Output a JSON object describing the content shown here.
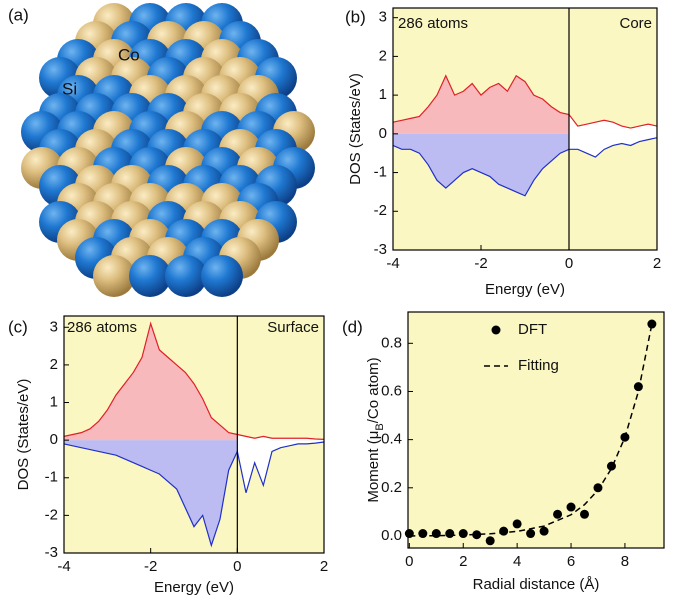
{
  "panel_a": {
    "label": "(a)",
    "atom_labels": [
      "Co",
      "Si"
    ]
  },
  "chart_data": [
    {
      "type": "area",
      "panel_label": "(b)",
      "annotations": [
        "286 atoms",
        "Core"
      ],
      "xlabel": "Energy (eV)",
      "ylabel": "DOS (States/eV)",
      "xlim": [
        -4,
        2
      ],
      "ylim": [
        -3,
        3.25
      ],
      "xticks": [
        -4,
        -2,
        0,
        2
      ],
      "yticks": [
        -3,
        -2,
        -1,
        0,
        1,
        2,
        3
      ],
      "vline": 0,
      "background": "#faf7c2",
      "empty_fill": "#ffffff",
      "x": [
        -4,
        -3.8,
        -3.6,
        -3.4,
        -3.2,
        -3,
        -2.8,
        -2.6,
        -2.4,
        -2.2,
        -2,
        -1.8,
        -1.6,
        -1.4,
        -1.2,
        -1,
        -0.8,
        -0.6,
        -0.4,
        -0.2,
        0,
        0.2,
        0.4,
        0.6,
        0.8,
        1,
        1.2,
        1.4,
        1.6,
        1.8,
        2
      ],
      "series": [
        {
          "color": "#e0202a",
          "fill": "#f7b9bb",
          "values": [
            0.3,
            0.35,
            0.4,
            0.45,
            0.7,
            1.0,
            1.5,
            1.0,
            1.1,
            1.3,
            1.0,
            1.2,
            1.3,
            1.1,
            1.5,
            1.35,
            1.0,
            0.9,
            0.7,
            0.55,
            0.5,
            0.2,
            0.25,
            0.3,
            0.35,
            0.3,
            0.2,
            0.15,
            0.2,
            0.25,
            0.2
          ]
        },
        {
          "color": "#2030c8",
          "fill": "#bcbcf2",
          "values": [
            -0.3,
            -0.4,
            -0.4,
            -0.5,
            -0.8,
            -1.2,
            -1.4,
            -1.2,
            -1.0,
            -0.9,
            -1.0,
            -1.1,
            -1.3,
            -1.4,
            -1.5,
            -1.6,
            -1.2,
            -0.9,
            -0.7,
            -0.5,
            -0.4,
            -0.4,
            -0.5,
            -0.6,
            -0.4,
            -0.3,
            -0.25,
            -0.3,
            -0.2,
            -0.15,
            -0.1
          ]
        }
      ]
    },
    {
      "type": "area",
      "panel_label": "(c)",
      "annotations": [
        "286 atoms",
        "Surface"
      ],
      "xlabel": "Energy (eV)",
      "ylabel": "DOS (States/eV)",
      "xlim": [
        -4,
        2
      ],
      "ylim": [
        -3,
        3.3
      ],
      "xticks": [
        -4,
        -2,
        0,
        2
      ],
      "yticks": [
        -3,
        -2,
        -1,
        0,
        1,
        2,
        3
      ],
      "vline": 0,
      "background": "#faf7c2",
      "empty_fill": "#ffffff",
      "x": [
        -4,
        -3.8,
        -3.6,
        -3.4,
        -3.2,
        -3,
        -2.8,
        -2.6,
        -2.4,
        -2.2,
        -2,
        -1.8,
        -1.6,
        -1.4,
        -1.2,
        -1,
        -0.8,
        -0.6,
        -0.4,
        -0.2,
        0,
        0.2,
        0.4,
        0.6,
        0.8,
        1,
        1.2,
        1.4,
        1.6,
        1.8,
        2
      ],
      "series": [
        {
          "color": "#e0202a",
          "fill": "#f7b9bb",
          "values": [
            0.1,
            0.15,
            0.2,
            0.3,
            0.5,
            0.8,
            1.2,
            1.5,
            1.8,
            2.2,
            3.1,
            2.4,
            2.2,
            2.0,
            1.8,
            1.5,
            1.1,
            0.6,
            0.4,
            0.2,
            0.15,
            0.1,
            0.05,
            0.1,
            0.05,
            0.05,
            0.05,
            0.05,
            0.05,
            0.03,
            0.02
          ]
        },
        {
          "color": "#2030c8",
          "fill": "#bcbcf2",
          "values": [
            -0.1,
            -0.15,
            -0.2,
            -0.25,
            -0.3,
            -0.35,
            -0.4,
            -0.5,
            -0.6,
            -0.7,
            -0.8,
            -0.9,
            -1.1,
            -1.3,
            -1.8,
            -2.3,
            -2.0,
            -2.8,
            -2.1,
            -0.8,
            -0.3,
            -1.4,
            -0.6,
            -1.2,
            -0.3,
            -0.2,
            -0.15,
            -0.1,
            -0.1,
            -0.08,
            -0.05
          ]
        }
      ]
    },
    {
      "type": "scatter",
      "panel_label": "(d)",
      "xlabel": "Radial distance (Å)",
      "ylabel_parts": [
        "Moment (μ",
        "B",
        "/Co atom)"
      ],
      "xlim": [
        -0.05,
        9.45
      ],
      "ylim": [
        -0.05,
        0.93
      ],
      "xticks": [
        0,
        2,
        4,
        6,
        8
      ],
      "yticks": [
        {
          "value": 0,
          "label": "0.0"
        },
        0.2,
        0.4,
        0.6,
        0.8
      ],
      "background": "#faf7c2",
      "series": [
        {
          "name": "DFT",
          "style": "marker",
          "color": "#000000",
          "x": [
            0,
            0.5,
            1,
            1.5,
            2,
            2.5,
            3,
            3.5,
            4,
            4.5,
            5,
            5.5,
            6,
            6.5,
            7,
            7.5,
            8,
            8.5,
            9
          ],
          "values": [
            0.01,
            0.01,
            0.01,
            0.01,
            0.01,
            0.005,
            -0.02,
            0.02,
            0.05,
            0.01,
            0.02,
            0.09,
            0.12,
            0.09,
            0.2,
            0.29,
            0.41,
            0.62,
            0.88
          ]
        },
        {
          "name": "Fitting",
          "style": "dashed",
          "color": "#000000",
          "x": [
            0,
            1,
            2,
            3,
            4,
            5,
            6,
            6.5,
            7,
            7.5,
            8,
            8.5,
            9
          ],
          "values": [
            0,
            0.001,
            0.004,
            0.009,
            0.019,
            0.041,
            0.088,
            0.13,
            0.19,
            0.28,
            0.41,
            0.6,
            0.88
          ]
        }
      ]
    }
  ]
}
